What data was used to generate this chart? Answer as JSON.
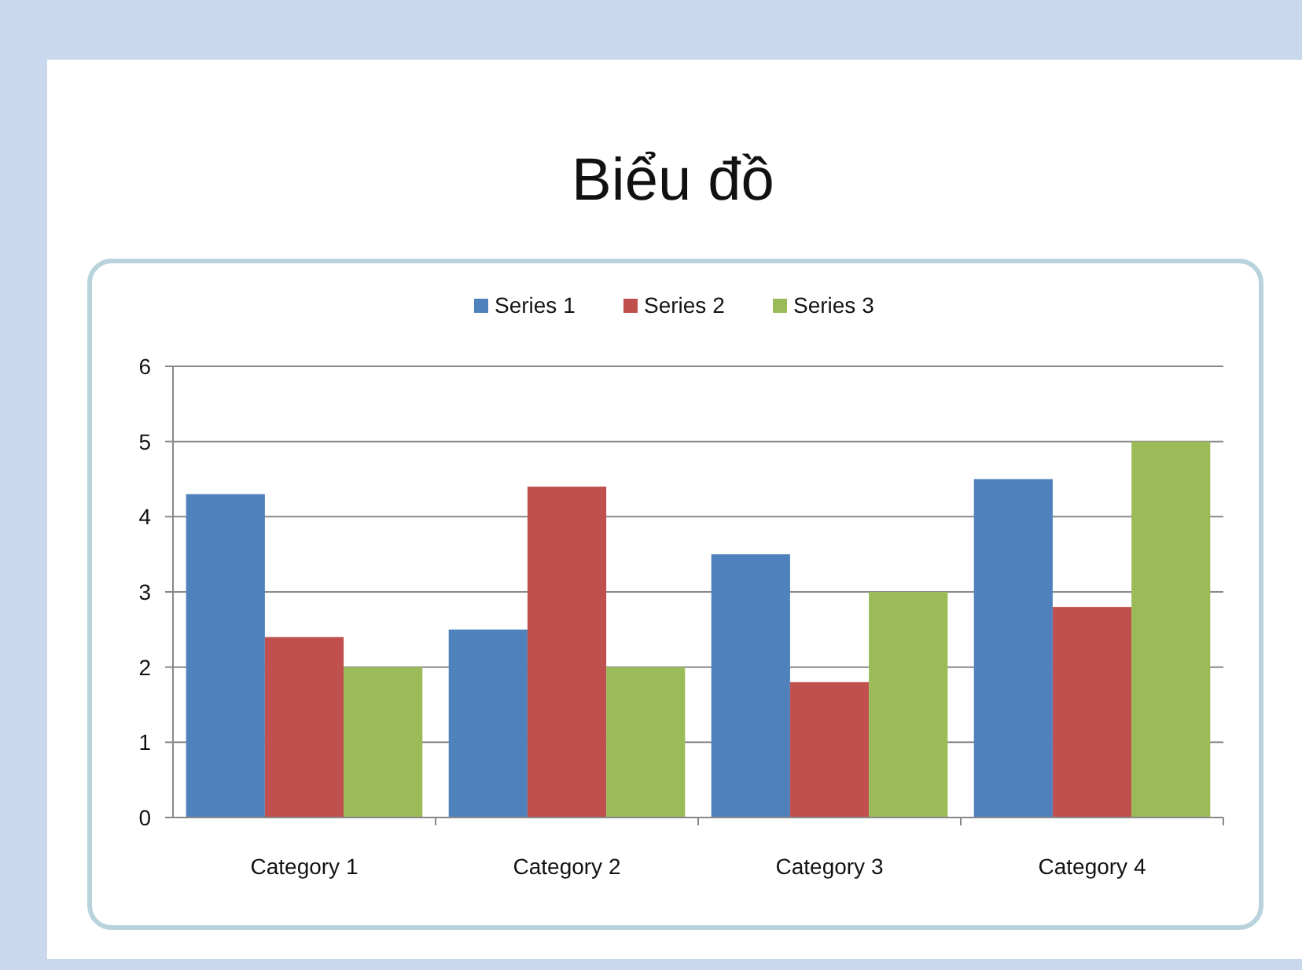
{
  "chart_data": {
    "type": "bar",
    "title": "Biểu đồ",
    "categories": [
      "Category 1",
      "Category 2",
      "Category 3",
      "Category 4"
    ],
    "series": [
      {
        "name": "Series 1",
        "color": "#4f81bd",
        "values": [
          4.3,
          2.5,
          3.5,
          4.5
        ]
      },
      {
        "name": "Series 2",
        "color": "#c0504d",
        "values": [
          2.4,
          4.4,
          1.8,
          2.8
        ]
      },
      {
        "name": "Series 3",
        "color": "#9bbb59",
        "values": [
          2,
          2,
          3,
          5
        ]
      }
    ],
    "ylim": [
      0,
      6
    ],
    "yticks": [
      0,
      1,
      2,
      3,
      4,
      5,
      6
    ],
    "grid": "y",
    "legend": "top"
  }
}
